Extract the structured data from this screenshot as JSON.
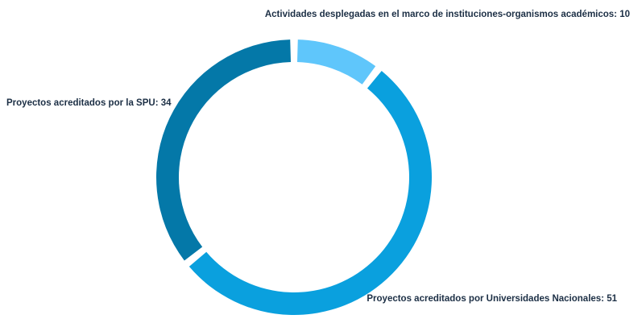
{
  "chart_data": {
    "type": "pie",
    "variant": "donut",
    "title": "",
    "slices": [
      {
        "label": "Actividades desplegadas en el marco de instituciones-organismos académicos",
        "value": 10,
        "color": "#5fc6fb",
        "display": "Actividades desplegadas en el marco de instituciones-organismos académicos: 10"
      },
      {
        "label": "Proyectos acreditados por Universidades Nacionales",
        "value": 51,
        "color": "#0aa0de",
        "display": "Proyectos acreditados por Universidades Nacionales: 51"
      },
      {
        "label": "Proyectos acreditados por la SPU",
        "value": 34,
        "color": "#0478a8",
        "display": "Proyectos acreditados por la SPU: 34"
      }
    ]
  }
}
